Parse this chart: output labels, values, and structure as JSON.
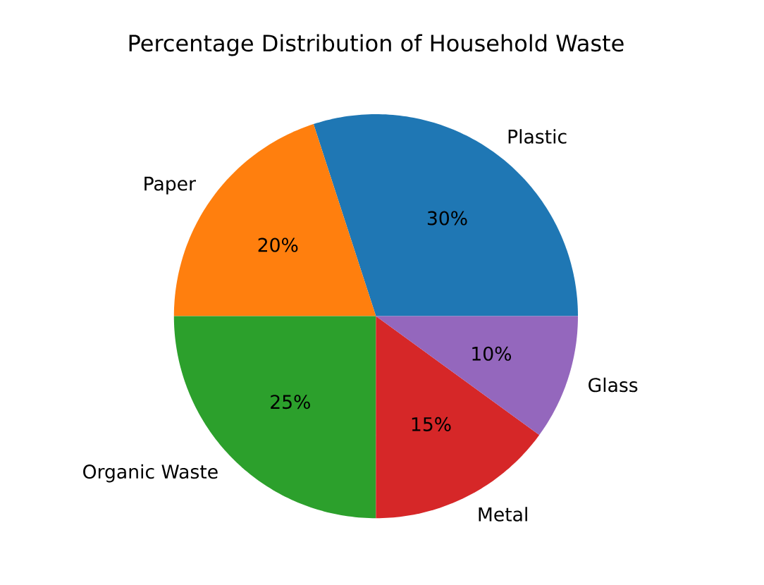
{
  "chart_data": {
    "type": "pie",
    "title": "Percentage Distribution of Household Waste",
    "categories": [
      "Plastic",
      "Paper",
      "Organic Waste",
      "Metal",
      "Glass"
    ],
    "values": [
      30,
      20,
      25,
      15,
      10
    ],
    "colors": [
      "#1f77b4",
      "#ff7f0e",
      "#2ca02c",
      "#d62728",
      "#9467bd"
    ],
    "value_labels": [
      "30%",
      "20%",
      "25%",
      "15%",
      "10%"
    ]
  }
}
